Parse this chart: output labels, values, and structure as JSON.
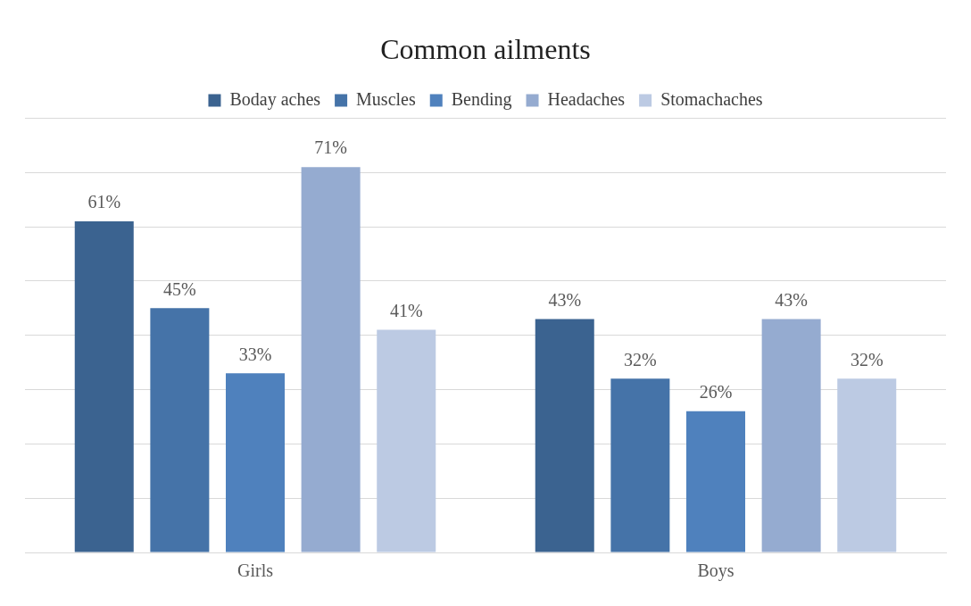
{
  "chart_data": {
    "type": "bar",
    "title": "Common ailments",
    "categories": [
      "Girls",
      "Boys"
    ],
    "series": [
      {
        "name": "Boday aches",
        "color": "#3b6390",
        "values": [
          61,
          43
        ],
        "value_labels": [
          "61%",
          "43%"
        ]
      },
      {
        "name": "Muscles",
        "color": "#4573a8",
        "values": [
          45,
          32
        ],
        "value_labels": [
          "45%",
          "32%"
        ]
      },
      {
        "name": "Bending",
        "color": "#4f81bd",
        "values": [
          33,
          26
        ],
        "value_labels": [
          "33%",
          "26%"
        ]
      },
      {
        "name": "Headaches",
        "color": "#95abd0",
        "values": [
          71,
          43
        ],
        "value_labels": [
          "71%",
          "43%"
        ]
      },
      {
        "name": "Stomachaches",
        "color": "#bccae3",
        "values": [
          41,
          32
        ],
        "value_labels": [
          "41%",
          "32%"
        ]
      }
    ],
    "ylim": [
      0,
      80
    ],
    "yticks": [
      {
        "value": 0,
        "label": null
      },
      {
        "value": 10,
        "label": null
      },
      {
        "value": 20,
        "label": null
      },
      {
        "value": 30,
        "label": null
      },
      {
        "value": 40,
        "label": null
      },
      {
        "value": 50,
        "label": null
      },
      {
        "value": 60,
        "label": null
      },
      {
        "value": 70,
        "label": null
      },
      {
        "value": 80,
        "label": null
      }
    ],
    "grid": "y",
    "legend": "top",
    "tick_labels": "x"
  }
}
